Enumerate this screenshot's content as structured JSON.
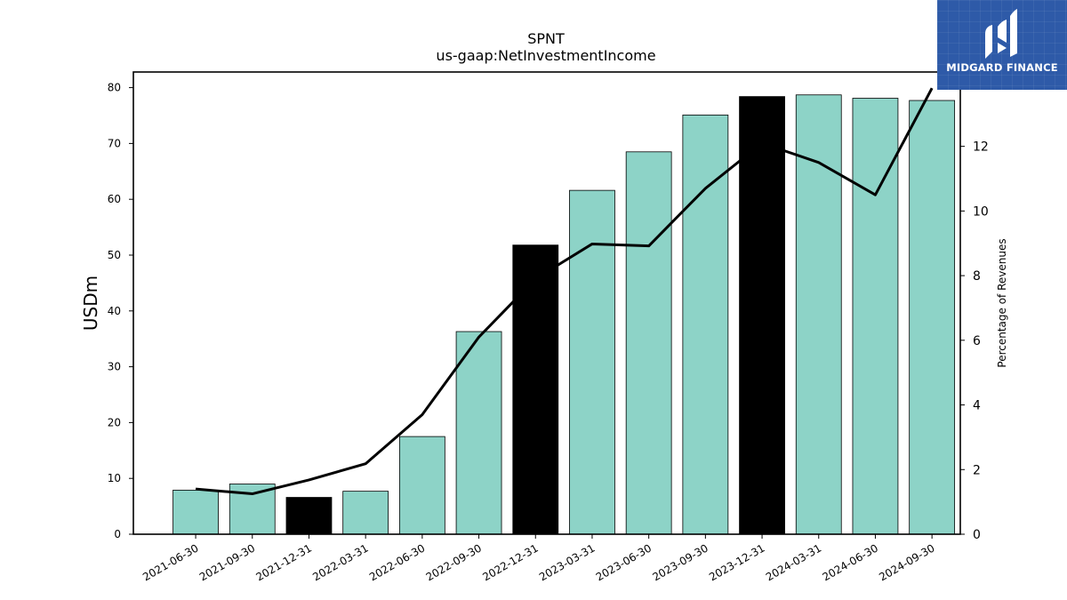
{
  "chart_data": {
    "type": "bar",
    "title": "SPNT",
    "subtitle": "us-gaap:NetInvestmentIncome",
    "ylabel": "USDm",
    "y2label": "Percentage of Revenues",
    "categories": [
      "2021-06-30",
      "2021-09-30",
      "2021-12-31",
      "2022-03-31",
      "2022-06-30",
      "2022-09-30",
      "2022-12-31",
      "2023-03-31",
      "2023-06-30",
      "2023-09-30",
      "2023-12-31",
      "2024-03-31",
      "2024-06-30",
      "2024-09-30"
    ],
    "series": [
      {
        "type": "bar",
        "values": [
          7.9,
          9.0,
          6.6,
          7.7,
          17.5,
          36.3,
          51.8,
          61.6,
          68.5,
          75.1,
          78.4,
          78.7,
          78.1,
          77.7
        ],
        "highlight": [
          false,
          false,
          true,
          false,
          false,
          false,
          true,
          false,
          false,
          false,
          true,
          false,
          false,
          false
        ]
      },
      {
        "type": "line",
        "axis": "right",
        "values": [
          1.4,
          1.25,
          1.68,
          2.18,
          3.7,
          6.1,
          7.9,
          8.98,
          8.92,
          10.7,
          12.1,
          11.5,
          10.5,
          13.8
        ]
      }
    ],
    "ylim": [
      0,
      82.8
    ],
    "y2lim": [
      0,
      14.3
    ],
    "yticks": [
      0,
      10,
      20,
      30,
      40,
      50,
      60,
      70,
      80
    ],
    "y2ticks": [
      0,
      2,
      4,
      6,
      8,
      10,
      12
    ],
    "grid": false,
    "colors": {
      "bar": "#8dd3c7",
      "highlight": "#000000",
      "line": "#000000"
    }
  },
  "logo": {
    "text": "MIDGARD FINANCE"
  }
}
